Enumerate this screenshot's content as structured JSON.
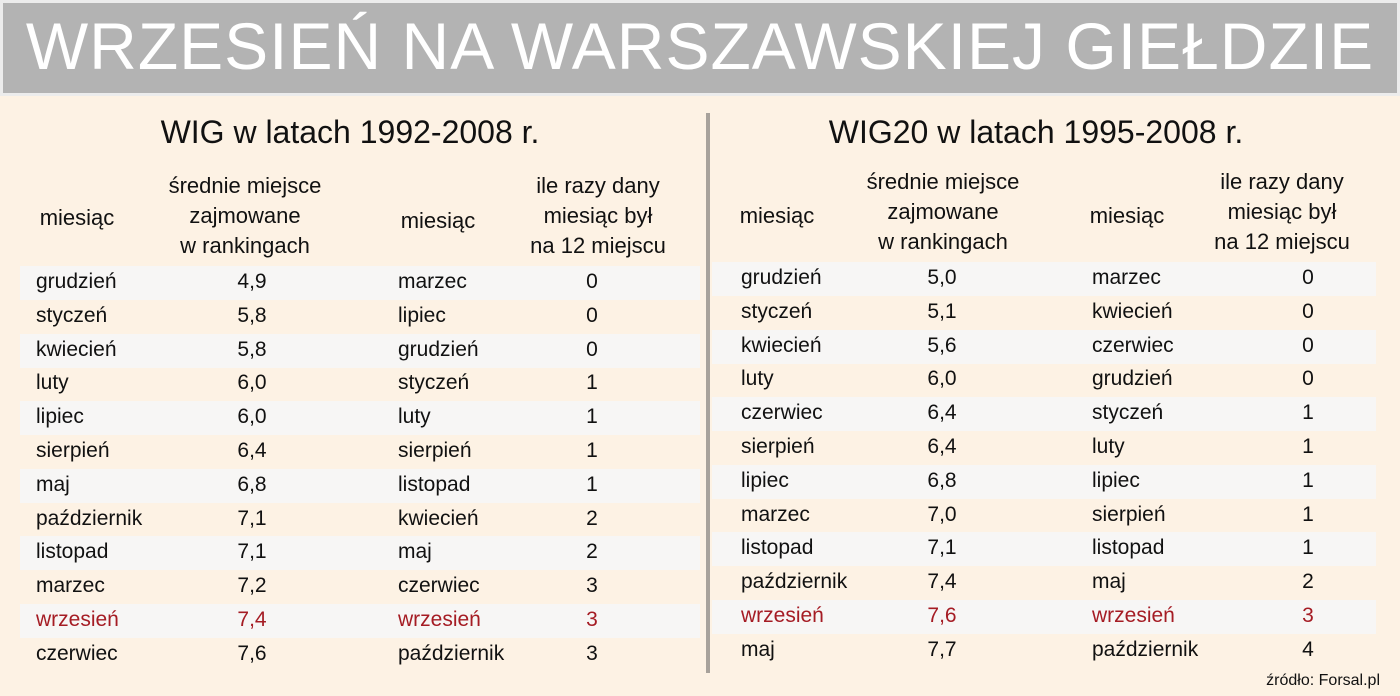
{
  "title": "WRZESIEŃ NA WARSZAWSKIEJ GIEŁDZIE",
  "highlight_color": "#a51c24",
  "left_panel": {
    "title": "WIG w latach 1992-2008 r.",
    "headers": {
      "month_a": "miesiąc",
      "avg_place": [
        "średnie miejsce",
        "zajmowane",
        "w rankingach"
      ],
      "month_b": "miesiąc",
      "times_12th": [
        "ile razy dany",
        "miesiąc był",
        "na 12 miejscu"
      ]
    },
    "avg_rank": [
      {
        "month": "grudzień",
        "value": "4,9"
      },
      {
        "month": "styczeń",
        "value": "5,8"
      },
      {
        "month": "kwiecień",
        "value": "5,8"
      },
      {
        "month": "luty",
        "value": "6,0"
      },
      {
        "month": "lipiec",
        "value": "6,0"
      },
      {
        "month": "sierpień",
        "value": "6,4"
      },
      {
        "month": "maj",
        "value": "6,8"
      },
      {
        "month": "październik",
        "value": "7,1"
      },
      {
        "month": "listopad",
        "value": "7,1"
      },
      {
        "month": "marzec",
        "value": "7,2"
      },
      {
        "month": "wrzesień",
        "value": "7,4",
        "highlight": true
      },
      {
        "month": "czerwiec",
        "value": "7,6"
      }
    ],
    "times_last": [
      {
        "month": "marzec",
        "value": "0"
      },
      {
        "month": "lipiec",
        "value": "0"
      },
      {
        "month": "grudzień",
        "value": "0"
      },
      {
        "month": "styczeń",
        "value": "1"
      },
      {
        "month": "luty",
        "value": "1"
      },
      {
        "month": "sierpień",
        "value": "1"
      },
      {
        "month": "listopad",
        "value": "1"
      },
      {
        "month": "kwiecień",
        "value": "2"
      },
      {
        "month": "maj",
        "value": "2"
      },
      {
        "month": "czerwiec",
        "value": "3"
      },
      {
        "month": "wrzesień",
        "value": "3",
        "highlight": true
      },
      {
        "month": "październik",
        "value": "3"
      }
    ]
  },
  "right_panel": {
    "title": "WIG20 w latach 1995-2008 r.",
    "headers": {
      "month_a": "miesiąc",
      "avg_place": [
        "średnie miejsce",
        "zajmowane",
        "w rankingach"
      ],
      "month_b": "miesiąc",
      "times_12th": [
        "ile razy dany",
        "miesiąc był",
        "na 12 miejscu"
      ]
    },
    "avg_rank": [
      {
        "month": "grudzień",
        "value": "5,0"
      },
      {
        "month": "styczeń",
        "value": "5,1"
      },
      {
        "month": "kwiecień",
        "value": "5,6"
      },
      {
        "month": "luty",
        "value": "6,0"
      },
      {
        "month": "czerwiec",
        "value": "6,4"
      },
      {
        "month": "sierpień",
        "value": "6,4"
      },
      {
        "month": "lipiec",
        "value": "6,8"
      },
      {
        "month": "marzec",
        "value": "7,0"
      },
      {
        "month": "listopad",
        "value": "7,1"
      },
      {
        "month": "październik",
        "value": "7,4"
      },
      {
        "month": "wrzesień",
        "value": "7,6",
        "highlight": true
      },
      {
        "month": "maj",
        "value": "7,7"
      }
    ],
    "times_last": [
      {
        "month": "marzec",
        "value": "0"
      },
      {
        "month": "kwiecień",
        "value": "0"
      },
      {
        "month": "czerwiec",
        "value": "0"
      },
      {
        "month": "grudzień",
        "value": "0"
      },
      {
        "month": "styczeń",
        "value": "1"
      },
      {
        "month": "luty",
        "value": "1"
      },
      {
        "month": "lipiec",
        "value": "1"
      },
      {
        "month": "sierpień",
        "value": "1"
      },
      {
        "month": "listopad",
        "value": "1"
      },
      {
        "month": "maj",
        "value": "2"
      },
      {
        "month": "wrzesień",
        "value": "3",
        "highlight": true
      },
      {
        "month": "październik",
        "value": "4"
      }
    ]
  },
  "source": "źródło: Forsal.pl"
}
